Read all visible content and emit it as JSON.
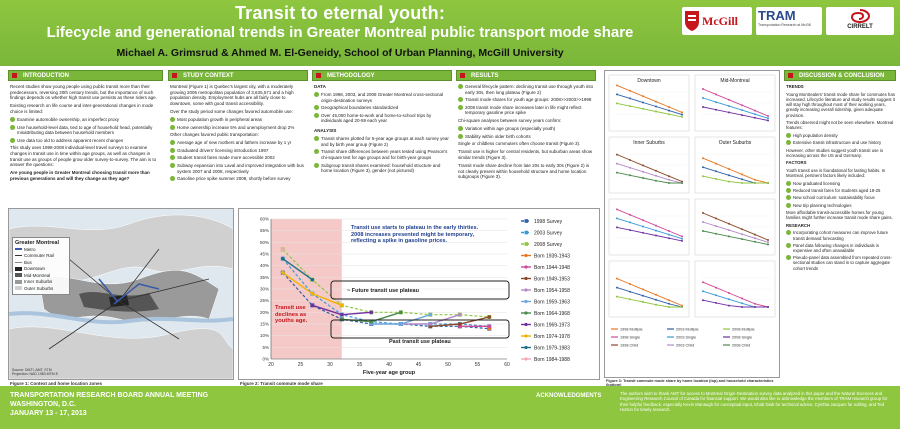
{
  "header": {
    "title_line1": "Transit to eternal youth:",
    "title_line2": "Lifecycle and generational trends in Greater Montreal public transport mode share",
    "authors": "Michael A. Grimsrud & Ahmed M. El-Geneidy, School of Urban Planning, McGill University"
  },
  "logos": {
    "mcgill": "McGill",
    "tram": "TRAM",
    "cirrelt": "CIRRELT",
    "tram_sub": "Transportation Research at McGill"
  },
  "sections": {
    "intro": "INTRODUCTION",
    "context": "STUDY CONTEXT",
    "method": "METHODOLOGY",
    "results": "RESULTS",
    "discussion": "DISCUSSION & CONCLUSION",
    "ack": "ACKNOWLEDGMENTS"
  },
  "intro": {
    "p1": "Recent studies show young people using public transit more than their predecessors, reversing 20th century trends, but the importance of such findings depends on whether high transit use persists as these riders age.",
    "p2": "Existing research on life course and inter-generational changes in mode choice is limited:",
    "bullets": [
      "Examine automobile ownership, an imperfect proxy",
      "Use household-level data, tied to age of household head, potentially misattributing data between household members",
      "Use data too old to address apparent recent changes"
    ],
    "p3": "This study uses 1998-2008 individual-level travel surveys to examine changes in transit use in time within age groups, as well as changes in transit use as groups of people grow older survey-to-survey. The aim is to answer the questions:",
    "q": "Are young people in Greater Montreal choosing transit more than previous generations and will they change as they age?"
  },
  "context": {
    "p1": "Montreal (Figure 1) is Quebec's largest city, with a moderately growing 2006 metropolitan population of 3,635,571 and a high population density. Employment hubs are all fairly close to downtown, some with good transit accessibility.",
    "p2": "Over the study period some changes favored automobile use:",
    "b1": [
      "Most population growth in peripheral areas",
      "Home ownership increase 5% and unemployment drop 2%"
    ],
    "p3": "Other changes favored public transportation:",
    "b2": [
      "Average age of new mothers and fathers increase by 1 yr",
      "Graduated drivers' licensing introduction 1997",
      "Student transit fares made more accessible 2002",
      "Subway expansion into Laval and improved integration with bus system 2007 and 2008, respectively",
      "Gasoline price spike summer 2008, shortly before survey"
    ]
  },
  "method": {
    "data_h": "DATA",
    "data": [
      "From 1998, 2003, and 2008 Greater Montreal cross-sectional origin-destination surveys",
      "Geographical boundaries standardized",
      "Over 45,000 home-to-work and home-to-school trips by individuals aged 20-59 each year"
    ],
    "anal_h": "ANALYSIS",
    "anal": [
      "Transit shares plotted for 5-year age groups at each survey year and by birth year group (Figure 2)",
      "Transit share differences between years tested using Pearson's chi-square test for age groups and for birth-year groups",
      "Subgroup transit shares examined: household structure and home location (Figure 3), gender (not pictured)"
    ]
  },
  "results": {
    "b1": [
      "General lifecycle pattern: declining transit use through youth into early 30s, then long plateau (Figure 2)",
      "Transit mode shares for youth age groups: 2008>>2003>>1998",
      "2008 transit mode share increases later in life might reflect temporary gasoline price spike"
    ],
    "p1": "Chi-square analyses between survey years confirm:",
    "b2": [
      "Variation within age groups (especially youth)",
      "Stability within older birth cohorts"
    ],
    "p2": "Single or childless commuters often choose transit (Figure 3).",
    "p3": "Transit use is higher for central residents, but suburban areas show similar trends (Figure 3).",
    "p4": "Transit mode share decline from late 20s to early 30s (Figure 2) is not clearly present within household structure and home location subgroups (Figure 3)."
  },
  "discussion": {
    "trends_h": "TRENDS",
    "trends_p1": "Young Montrealers' transit mode share for commutes has increased. Lifecycle literature and study results suggest it will stay high throughout most of their working years, greatly increasing overall ridership, given adequate provision.",
    "trends_p2": "Trends observed might not be seen elsewhere. Montreal features:",
    "trends_b": [
      "High population density",
      "Extensive transit infrastructure and use history"
    ],
    "trends_p3": "However, other studies suggest youth transit use is increasing across the US and Germany.",
    "factors_h": "FACTORS",
    "factors_p": "Youth transit use is foundational for lasting habits. In Montreal, pertinent factors likely included:",
    "factors_b": [
      "Now graduated licensing",
      "Reduced transit fares for students aged 18-25",
      "New school curriculum: sustainability focus",
      "New trip planning technologies"
    ],
    "factors_p2": "More affordable transit-accessible homes for young families might further increase transit mode share gains.",
    "research_h": "RESEARCH",
    "research_b": [
      "Incorporating cohort measures can improve future transit demand forecasting",
      "Panel data following changes in individuals is expensive and often unavailable",
      "Pseudo-panel data assembled from repeated cross-sectional studies can stand in to capture aggregate cohort trends"
    ]
  },
  "map": {
    "legend_title": "Greater Montreal",
    "items": [
      "Metro",
      "Commuter Rail",
      "Bus",
      "Downtown",
      "Mid-Montreal",
      "Inner Suburbs",
      "Outer Suburbs"
    ],
    "colors": [
      "#3a5aa8",
      "#333333",
      "#888888",
      "#222222",
      "#555555",
      "#9a9a9a",
      "#d0d0d0"
    ],
    "source": "Source: DMTI, AMT, STM\nProjection: NAD 1983 MTM 8",
    "caption": "Figure 1: Context and home location zones"
  },
  "chart_data": {
    "type": "line",
    "xlabel": "Five-year age group",
    "ylim": [
      0,
      60
    ],
    "xlim": [
      20,
      60
    ],
    "y_ticks": [
      0,
      5,
      10,
      15,
      20,
      25,
      30,
      35,
      40,
      45,
      50,
      55,
      60
    ],
    "y_tick_labels": [
      "0%",
      "5%",
      "10%",
      "15%",
      "20%",
      "25%",
      "30%",
      "35%",
      "40%",
      "45%",
      "50%",
      "55%",
      "60%"
    ],
    "x_ticks": [
      20,
      25,
      30,
      35,
      40,
      45,
      50,
      55,
      60
    ],
    "series": [
      {
        "name": "1998 Survey",
        "color": "#2e5fa8",
        "dash": "3,2",
        "x": [
          22,
          27,
          32,
          37,
          42,
          47,
          52,
          57
        ],
        "values": [
          37,
          23,
          17,
          15,
          15,
          14,
          14,
          13
        ]
      },
      {
        "name": "2003 Survey",
        "color": "#3a9ad9",
        "dash": "3,2",
        "x": [
          22,
          27,
          32,
          37,
          42,
          47,
          52,
          57
        ],
        "values": [
          43,
          28,
          19,
          16,
          15,
          15,
          15,
          14
        ]
      },
      {
        "name": "2008 Survey",
        "color": "#8ec63f",
        "dash": "3,2",
        "x": [
          22,
          27,
          32,
          37,
          42,
          47,
          52,
          57
        ],
        "values": [
          47,
          34,
          23,
          20,
          20,
          19,
          19,
          18
        ]
      },
      {
        "name": "Born 1939-1943",
        "color": "#e87722",
        "dash": "",
        "x": [
          57
        ],
        "values": [
          13
        ]
      },
      {
        "name": "Born 1944-1948",
        "color": "#d04a9a",
        "dash": "",
        "x": [
          52,
          57
        ],
        "values": [
          14,
          14
        ]
      },
      {
        "name": "Born 1949-1953",
        "color": "#8b4a2a",
        "dash": "",
        "x": [
          47,
          52,
          57
        ],
        "values": [
          14,
          15,
          18
        ]
      },
      {
        "name": "Born 1954-1958",
        "color": "#b58ac8",
        "dash": "",
        "x": [
          42,
          47,
          52
        ],
        "values": [
          15,
          15,
          19
        ]
      },
      {
        "name": "Born 1959-1963",
        "color": "#6fa8dc",
        "dash": "",
        "x": [
          37,
          42,
          47
        ],
        "values": [
          15,
          15,
          19
        ]
      },
      {
        "name": "Born 1964-1968",
        "color": "#4a8a4a",
        "dash": "",
        "x": [
          32,
          37,
          42
        ],
        "values": [
          17,
          16,
          20
        ]
      },
      {
        "name": "Born 1969-1973",
        "color": "#7030a0",
        "dash": "",
        "x": [
          27,
          32,
          37
        ],
        "values": [
          23,
          19,
          20
        ]
      },
      {
        "name": "Born 1974-1978",
        "color": "#f0b400",
        "dash": "",
        "x": [
          22,
          27,
          32
        ],
        "values": [
          37,
          28,
          23
        ]
      },
      {
        "name": "Born 1979-1983",
        "color": "#1f6f8b",
        "dash": "",
        "x": [
          22,
          27
        ],
        "values": [
          43,
          34
        ]
      },
      {
        "name": "Born 1984-1988",
        "color": "#f4a6b6",
        "dash": "",
        "x": [
          22
        ],
        "values": [
          47
        ]
      }
    ],
    "annotations": {
      "top": "Transit use starts to plateau in the early thirties. 2008 increases presented might be temporary, reflecting a spike in gasoline prices.",
      "future": "~ Future transit use plateau",
      "past": "Past transit use plateau",
      "declines": "Transit use declines as youths age."
    },
    "caption": "Figure 2: Transit commute mode share"
  },
  "small_charts": {
    "titles": [
      "Downtown",
      "Mid-Montreal",
      "Inner Suburbs",
      "Outer Suburbs"
    ],
    "legend": [
      "1998 Multiple",
      "2003 Multiple",
      "2008 Multiple",
      "1998 Single",
      "2003 Single",
      "2008 Single",
      "1998 Child",
      "2003 Child",
      "2008 Child"
    ],
    "caption": "Figure 3: Transit commute mode share by home location (top) and household characteristics (bottom)"
  },
  "footer": {
    "conf": "TRANSPORTATION RESEARCH BOARD ANNUAL MEETING",
    "city": "WASHINGTON, D.C.",
    "dates": "JANUARY 13 - 17, 2013",
    "ack": "The authors wish to thank AMT for access to Montreal Origin-Destination survey data analyzed in this paper and the Natural Sciences and Engineering Research Council of Canada for financial support. We would also like to acknowledge the members of TRAM research group for their helpful feedback, especially Kevin Manaugh for conceptual input, Ehab Diab for technical advice, Cynthia Jacques for editing, and Ted Horton for timely research."
  }
}
